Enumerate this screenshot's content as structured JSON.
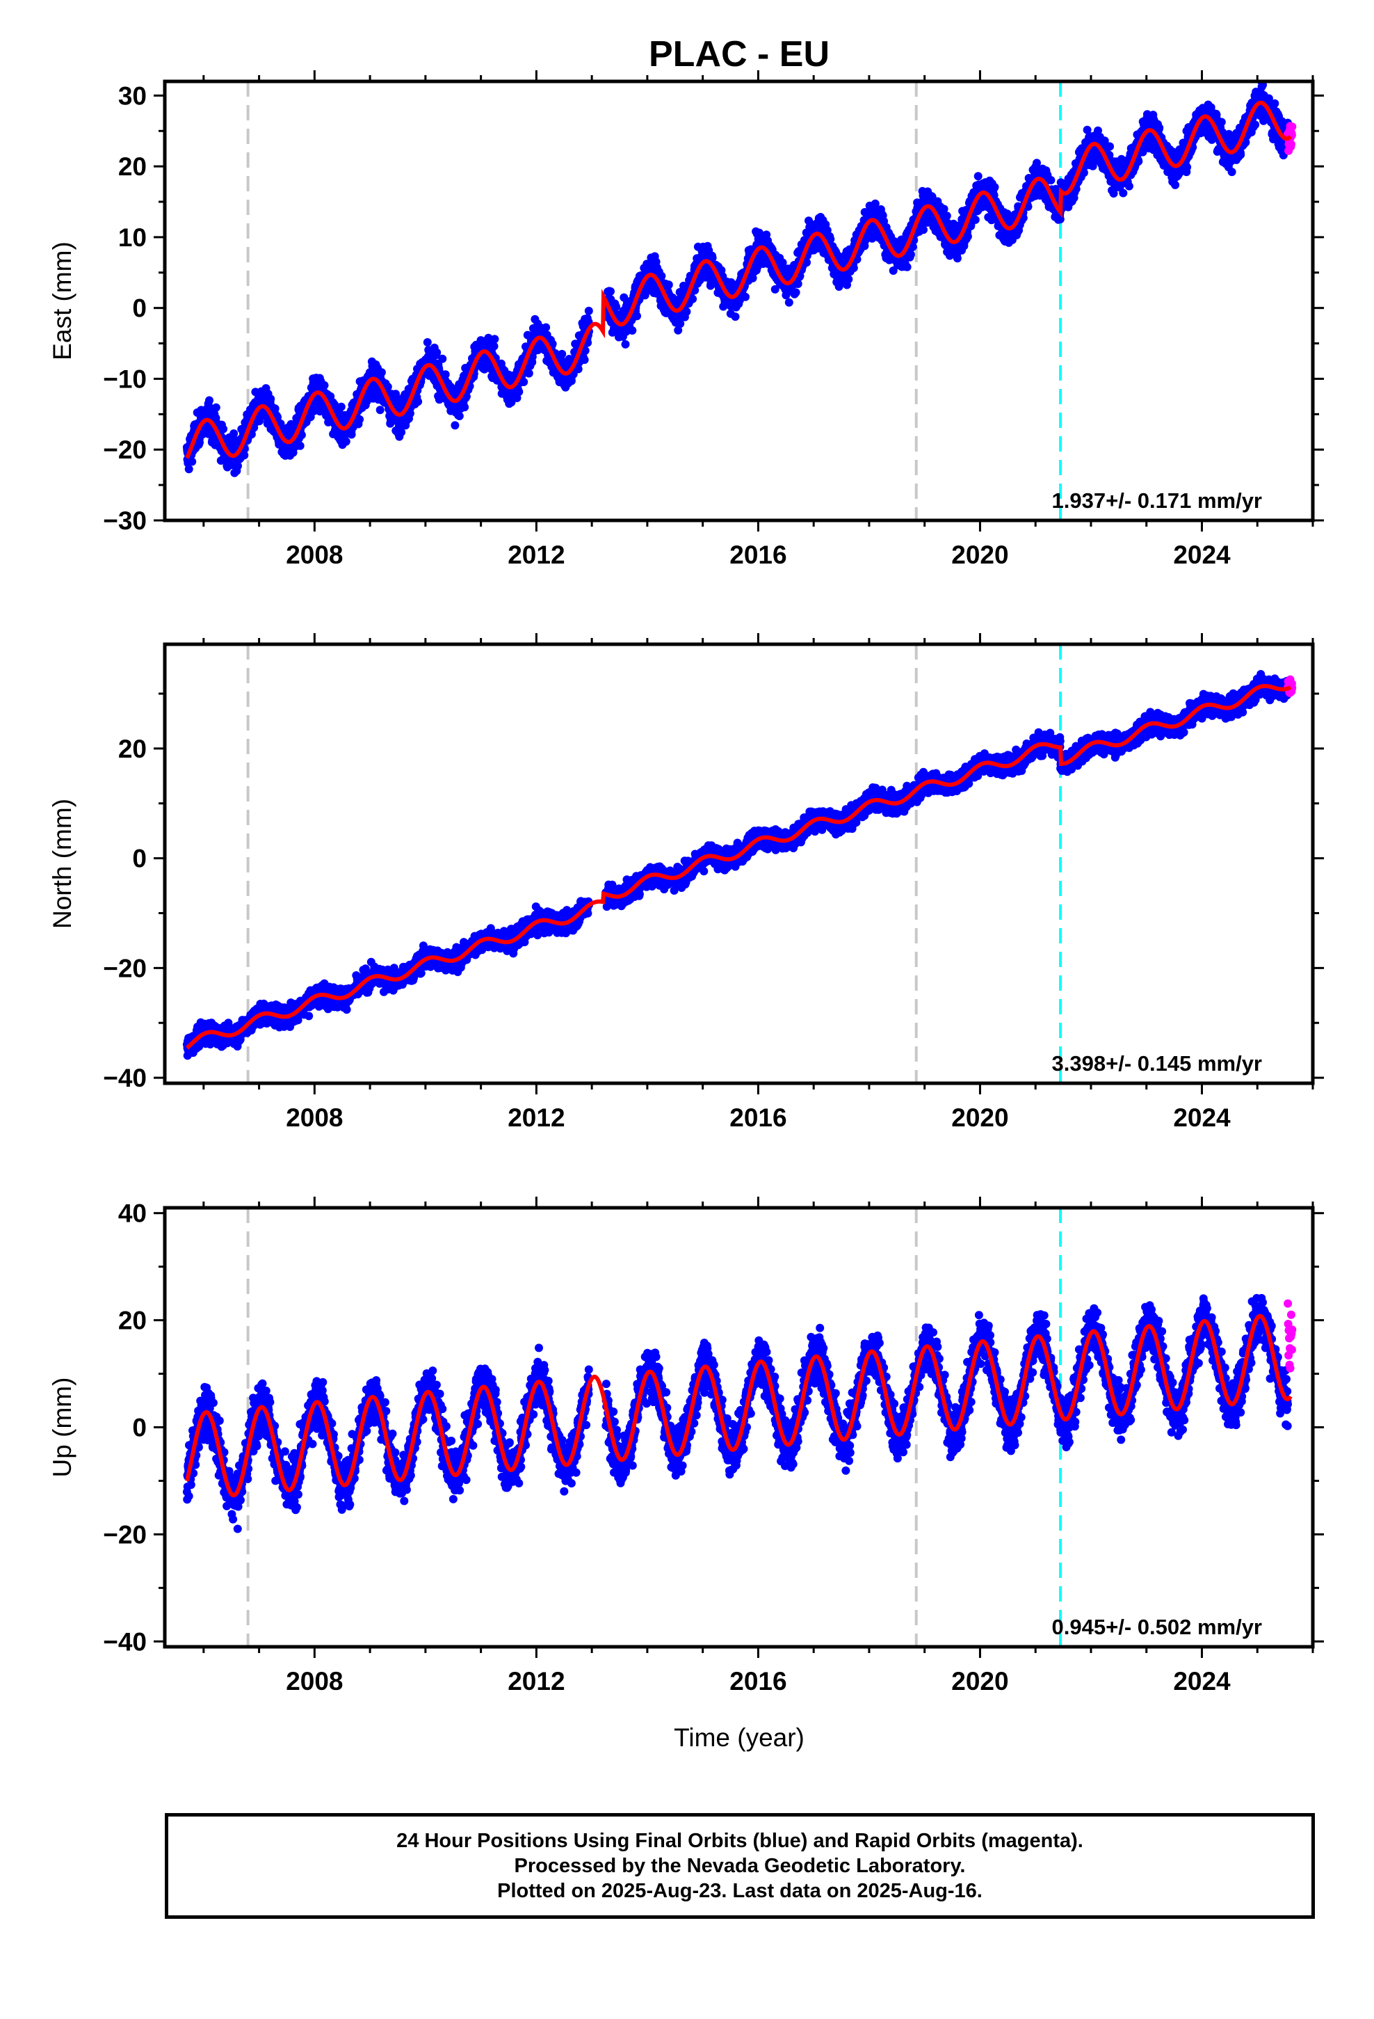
{
  "figure": {
    "title": "PLAC - EU",
    "xlabel": "Time (year)"
  },
  "caption": {
    "line1": "24 Hour Positions Using Final Orbits (blue) and Rapid Orbits (magenta).",
    "line2": "Processed by the Nevada Geodetic Laboratory.",
    "line3": "Plotted on 2025-Aug-23. Last data on 2025-Aug-16."
  },
  "colors": {
    "final_orbits": "#0000ff",
    "rapid_orbits": "#ff00ff",
    "model_fit": "#ff0000",
    "equipment_change": "#c8c8c8",
    "earthquake": "#00ffff"
  },
  "chart_data": [
    {
      "type": "scatter",
      "title": "PLAC - EU",
      "xlabel": "",
      "ylabel": "East (mm)",
      "xlim": [
        2005.3,
        2026.0
      ],
      "ylim": [
        -30,
        32
      ],
      "xticks": [
        2008,
        2012,
        2016,
        2020,
        2024
      ],
      "yticks": [
        -30,
        -20,
        -10,
        0,
        10,
        20,
        30
      ],
      "rate_label": "1.937+/- 0.171 mm/yr",
      "vlines": {
        "gray": [
          2006.8,
          2018.85
        ],
        "cyan": [
          2021.45
        ]
      },
      "series": [
        {
          "name": "Final Orbits",
          "color": "#0000ff",
          "x_start": 2005.7,
          "x_end": 2025.55,
          "trend_intercept": -19.5,
          "trend_slope": 1.937,
          "seasonal_amp": 3.0,
          "scatter": 2.3,
          "offsets": [
            [
              2013.2,
              5.0
            ],
            [
              2021.45,
              3.0
            ]
          ]
        },
        {
          "name": "Rapid Orbits",
          "color": "#ff00ff",
          "x_start": 2025.55,
          "x_end": 2025.63,
          "trend_intercept": -19.5,
          "trend_slope": 1.937,
          "seasonal_amp": 3.0,
          "scatter": 2.3,
          "offsets": [
            [
              2013.2,
              5.0
            ],
            [
              2021.45,
              3.0
            ]
          ]
        },
        {
          "name": "Model Fit",
          "color": "#ff0000"
        }
      ]
    },
    {
      "type": "scatter",
      "xlabel": "",
      "ylabel": "North (mm)",
      "xlim": [
        2005.3,
        2026.0
      ],
      "ylim": [
        -41,
        39
      ],
      "xticks": [
        2008,
        2012,
        2016,
        2020,
        2024
      ],
      "yticks": [
        -40,
        -20,
        0,
        20
      ],
      "rate_label": "3.398+/- 0.145 mm/yr",
      "vlines": {
        "gray": [
          2006.8,
          2018.85
        ],
        "cyan": [
          2021.45
        ]
      },
      "series": [
        {
          "name": "Final Orbits",
          "color": "#0000ff",
          "x_start": 2005.7,
          "x_end": 2025.55,
          "trend_intercept": -34.0,
          "trend_slope": 3.398,
          "seasonal_amp": 1.0,
          "scatter": 1.8,
          "offsets": [
            [
              2013.2,
              1.5
            ],
            [
              2021.45,
              -3.0
            ]
          ]
        },
        {
          "name": "Rapid Orbits",
          "color": "#ff00ff",
          "x_start": 2025.55,
          "x_end": 2025.63,
          "trend_intercept": -34.0,
          "trend_slope": 3.398,
          "seasonal_amp": 1.0,
          "scatter": 1.8,
          "offsets": [
            [
              2013.2,
              1.5
            ],
            [
              2021.45,
              -3.0
            ]
          ]
        },
        {
          "name": "Model Fit",
          "color": "#ff0000"
        }
      ]
    },
    {
      "type": "scatter",
      "xlabel": "Time (year)",
      "ylabel": "Up (mm)",
      "xlim": [
        2005.3,
        2026.0
      ],
      "ylim": [
        -41,
        41
      ],
      "xticks": [
        2008,
        2012,
        2016,
        2020,
        2024
      ],
      "yticks": [
        -40,
        -20,
        0,
        20,
        40
      ],
      "rate_label": "0.945+/- 0.502 mm/yr",
      "vlines": {
        "gray": [
          2006.8,
          2018.85
        ],
        "cyan": [
          2021.45
        ]
      },
      "series": [
        {
          "name": "Final Orbits",
          "color": "#0000ff",
          "x_start": 2005.7,
          "x_end": 2025.55,
          "trend_intercept": -5.5,
          "trend_slope": 0.945,
          "seasonal_amp": 8.0,
          "scatter": 4.5,
          "offsets": []
        },
        {
          "name": "Rapid Orbits",
          "color": "#ff00ff",
          "x_start": 2025.55,
          "x_end": 2025.63,
          "trend_intercept": 8.0,
          "trend_slope": 0.945,
          "seasonal_amp": 8.0,
          "scatter": 6.0,
          "offsets": []
        },
        {
          "name": "Model Fit",
          "color": "#ff0000"
        }
      ]
    }
  ]
}
